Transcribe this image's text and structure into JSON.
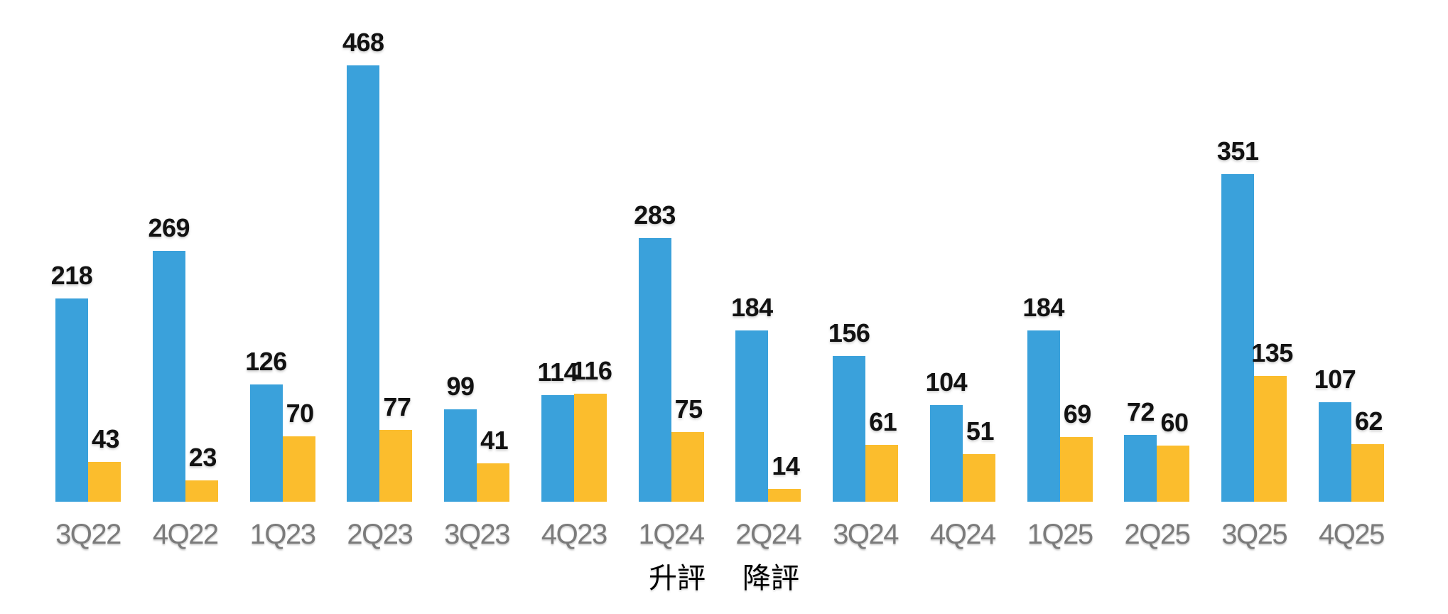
{
  "chart_data": {
    "type": "bar",
    "title": "",
    "xlabel": "",
    "ylabel": "",
    "categories": [
      "3Q22",
      "4Q22",
      "1Q23",
      "2Q23",
      "3Q23",
      "4Q23",
      "1Q24",
      "2Q24",
      "3Q24",
      "4Q24",
      "1Q25",
      "2Q25",
      "3Q25",
      "4Q25"
    ],
    "series": [
      {
        "name": "升評",
        "color": "#3AA1DB",
        "values": [
          218,
          269,
          126,
          468,
          99,
          114,
          283,
          184,
          156,
          104,
          184,
          72,
          351,
          107
        ]
      },
      {
        "name": "降評",
        "color": "#FBBD2D",
        "values": [
          43,
          23,
          70,
          77,
          41,
          116,
          75,
          14,
          61,
          51,
          69,
          60,
          135,
          62
        ]
      }
    ],
    "ylim": [
      0,
      468
    ],
    "grid": false,
    "value_labels": true,
    "legend_position": "bottom"
  },
  "colors": {
    "value_label": "#121212",
    "axis_label": "#7B7B7B",
    "legend_text": "#000000",
    "background": "#FFFFFF"
  }
}
